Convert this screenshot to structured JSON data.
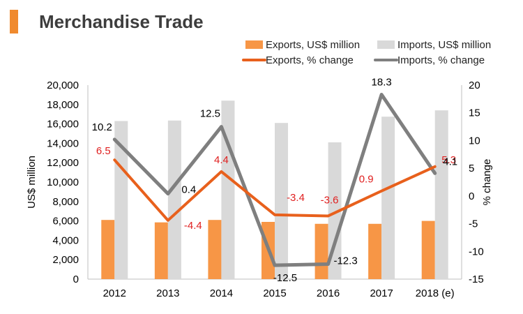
{
  "title": "Merchandise Trade",
  "colors": {
    "accent": "#F08A2E",
    "exports_bar": "#F79646",
    "imports_bar": "#D9D9D9",
    "exports_line": "#E8601C",
    "imports_line": "#7F7F7F",
    "exports_label": "#E02020",
    "imports_label": "#000000"
  },
  "chart_data": {
    "type": "bar+line",
    "categories": [
      "2012",
      "2013",
      "2014",
      "2015",
      "2016",
      "2017",
      "2018 (e)"
    ],
    "series": [
      {
        "name": "Exports, US$ million",
        "type": "bar",
        "axis": "left",
        "values": [
          6100,
          5850,
          6100,
          5900,
          5700,
          5700,
          6000
        ]
      },
      {
        "name": "Imports, US$ million",
        "type": "bar",
        "axis": "left",
        "values": [
          16300,
          16350,
          18400,
          16100,
          14100,
          16750,
          17400
        ]
      },
      {
        "name": "Exports, % change",
        "type": "line",
        "axis": "right",
        "values": [
          6.5,
          -4.4,
          4.4,
          -3.4,
          -3.6,
          0.9,
          5.3
        ],
        "labels": [
          "6.5",
          "-4.4",
          "4.4",
          "-3.4",
          "-3.6",
          "0.9",
          "5.3"
        ]
      },
      {
        "name": "Imports, % change",
        "type": "line",
        "axis": "right",
        "values": [
          10.2,
          0.4,
          12.5,
          -12.5,
          -12.3,
          18.3,
          4.1
        ],
        "labels": [
          "10.2",
          "0.4",
          "12.5",
          "-12.5",
          "-12.3",
          "18.3",
          "4.1"
        ]
      }
    ],
    "ylabel": "US$ million",
    "y2label": "% change",
    "ylim": [
      0,
      20000
    ],
    "y2lim": [
      -15,
      20
    ],
    "yticks": [
      "0",
      "2,000",
      "4,000",
      "6,000",
      "8,000",
      "10,000",
      "12,000",
      "14,000",
      "16,000",
      "18,000",
      "20,000"
    ],
    "y2ticks": [
      "-15",
      "-10",
      "-5",
      "0",
      "5",
      "10",
      "15",
      "20"
    ],
    "grid": false,
    "legend": "top-right"
  }
}
